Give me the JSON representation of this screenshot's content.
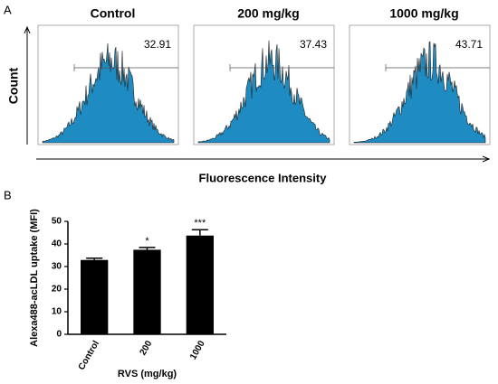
{
  "panel_a": {
    "label": "A",
    "y_label": "Count",
    "x_label": "Fluorescence Intensity",
    "histograms": [
      {
        "title": "Control",
        "value": 32.91
      },
      {
        "title": "200 mg/kg",
        "value": 37.43
      },
      {
        "title": "1000  mg/kg",
        "value": 43.71
      }
    ]
  },
  "panel_b": {
    "label": "B",
    "chart_data": {
      "type": "bar",
      "categories": [
        "Control",
        "200",
        "1000"
      ],
      "values": [
        32.91,
        37.43,
        43.71
      ],
      "errors": [
        0.8,
        1.0,
        2.6
      ],
      "annotations": [
        null,
        "*",
        "***"
      ],
      "color": "#000000",
      "x_label": "RVS (mg/kg)",
      "y_label": "Alexa488-acLDL uptake (MFI)",
      "ylim": [
        0,
        50
      ],
      "yticks": [
        0,
        10,
        20,
        30,
        40,
        50
      ]
    }
  }
}
